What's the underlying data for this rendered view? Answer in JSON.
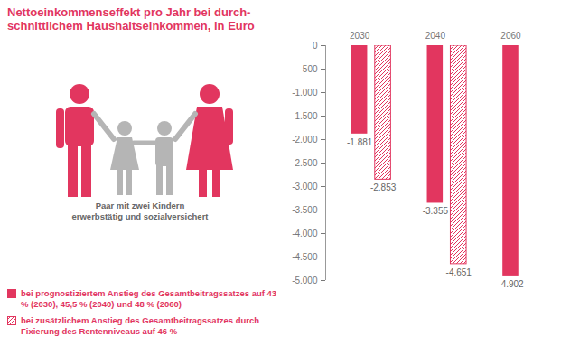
{
  "chart_data": {
    "type": "bar",
    "title": "Nettoeinkommenseffekt pro Jahr bei durch-\nschnittlichem Haushaltseinkommen, in Euro",
    "annotations": [
      "Paar mit zwei Kindern\nerwerbstätig und sozialversichert"
    ],
    "categories": [
      "2030",
      "2040",
      "2060"
    ],
    "series": [
      {
        "name": "bei prognostiziertem Anstieg des Gesamtbeitragssatzes auf 43 % (2030), 45,5 % (2040) und 48 % (2060)",
        "color": "#e2365f",
        "values": [
          -1881,
          -3355,
          -4902
        ],
        "value_labels": [
          "-1.881",
          "-3.355",
          "-4.902"
        ]
      },
      {
        "name": "bei zusätzlichem Anstieg des Gesamtbeitragssatzes durch Fixierung des Rentenniveaus auf 46 %",
        "color": "#e2365f",
        "values": [
          -2853,
          -4651,
          null
        ],
        "value_labels": [
          "-2.853",
          "-4.651",
          null
        ]
      }
    ],
    "ylim": [
      -5000,
      0
    ],
    "yticks": [
      0,
      -500,
      {
        "value": -1000,
        "label": "-1.000"
      },
      {
        "value": -1500,
        "label": "-1.500"
      },
      {
        "value": -2000,
        "label": "-2.000"
      },
      {
        "value": -2500,
        "label": "-2.500"
      },
      {
        "value": -3000,
        "label": "-3.000"
      },
      {
        "value": -3500,
        "label": "-3.500"
      },
      {
        "value": -4000,
        "label": "-4.000"
      },
      {
        "value": -4500,
        "label": "-4.500"
      },
      {
        "value": -5000,
        "label": "-5.000"
      }
    ],
    "grid": false,
    "data_labels": true,
    "legend": "lower left"
  }
}
